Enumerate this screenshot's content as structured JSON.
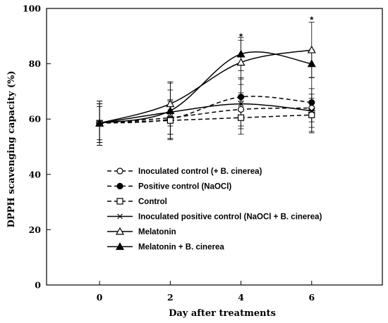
{
  "chart_data": {
    "type": "line",
    "xlabel": "Day after treatments",
    "ylabel": "DPPH scavenging capacity (%)",
    "xlim": [
      -1.5,
      8
    ],
    "ylim": [
      0,
      100
    ],
    "x_ticks": [
      0,
      2,
      4,
      6
    ],
    "y_ticks": [
      0,
      20,
      40,
      60,
      80,
      100
    ],
    "x": [
      0,
      2,
      4,
      6
    ],
    "grid": false,
    "legend_position": "lower-center",
    "series": [
      {
        "name": "Inoculated control (+ B. cinerea)",
        "marker": "circle-open",
        "line": "dashed",
        "values": [
          58.5,
          60.5,
          63.5,
          64
        ],
        "errors": [
          7,
          6,
          6,
          5
        ]
      },
      {
        "name": "Positive control (NaOCl)",
        "marker": "circle-filled",
        "line": "dashed",
        "values": [
          58.5,
          60,
          68,
          66
        ],
        "errors": [
          7,
          7,
          7,
          9
        ]
      },
      {
        "name": "Control",
        "marker": "square-open",
        "line": "dashed",
        "values": [
          58.5,
          59.5,
          60.5,
          61.5
        ],
        "errors": [
          6,
          7,
          6,
          6
        ]
      },
      {
        "name": "Inoculated positive control (NaOCl + B. cinerea)",
        "marker": "asterisk",
        "line": "solid",
        "values": [
          58.5,
          62.5,
          65.5,
          63
        ],
        "errors": [
          7,
          8,
          9,
          8
        ]
      },
      {
        "name": "Melatonin",
        "marker": "triangle-open",
        "line": "solid",
        "values": [
          58.5,
          65.5,
          80.5,
          85
        ],
        "errors": [
          8,
          8,
          8,
          10
        ]
      },
      {
        "name": "Melatonin + B. cinerea",
        "marker": "triangle-filled",
        "line": "solid",
        "values": [
          58.5,
          63,
          83.5,
          80
        ],
        "errors": [
          8,
          10,
          6,
          5
        ]
      }
    ],
    "annotations": [
      {
        "text": "*",
        "x": 4,
        "y": 90
      },
      {
        "text": "*",
        "x": 6,
        "y": 96
      }
    ]
  }
}
